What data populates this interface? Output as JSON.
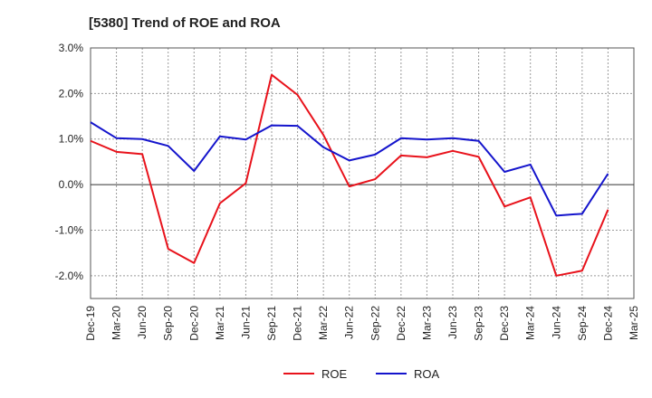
{
  "chart_data": {
    "type": "line",
    "title": "[5380]  Trend of ROE and ROA",
    "xlabel": "",
    "ylabel": "",
    "categories": [
      "Dec-19",
      "Mar-20",
      "Jun-20",
      "Sep-20",
      "Dec-20",
      "Mar-21",
      "Jun-21",
      "Sep-21",
      "Dec-21",
      "Mar-22",
      "Jun-22",
      "Sep-22",
      "Dec-22",
      "Mar-23",
      "Jun-23",
      "Sep-23",
      "Dec-23",
      "Mar-24",
      "Jun-24",
      "Sep-24",
      "Dec-24",
      "Mar-25"
    ],
    "ylim": [
      -2.5,
      3.0
    ],
    "yticks": [
      3.0,
      2.0,
      1.0,
      0.0,
      -1.0,
      -2.0
    ],
    "ytick_labels": [
      "3.0%",
      "2.0%",
      "1.0%",
      "0.0%",
      "-1.0%",
      "-2.0%"
    ],
    "grid": true,
    "legend_position": "bottom-center",
    "series": [
      {
        "name": "ROE",
        "color": "#e8121b",
        "values": [
          0.96,
          0.72,
          0.67,
          -1.41,
          -1.72,
          -0.41,
          0.03,
          2.41,
          1.97,
          1.09,
          -0.04,
          0.12,
          0.64,
          0.6,
          0.74,
          0.61,
          -0.48,
          -0.28,
          -2.0,
          -1.89,
          -0.55,
          null
        ]
      },
      {
        "name": "ROA",
        "color": "#1414cc",
        "values": [
          1.37,
          1.02,
          1.0,
          0.85,
          0.3,
          1.06,
          0.99,
          1.3,
          1.29,
          0.82,
          0.53,
          0.66,
          1.02,
          0.99,
          1.02,
          0.96,
          0.28,
          0.44,
          -0.68,
          -0.64,
          0.24,
          null
        ]
      }
    ]
  }
}
